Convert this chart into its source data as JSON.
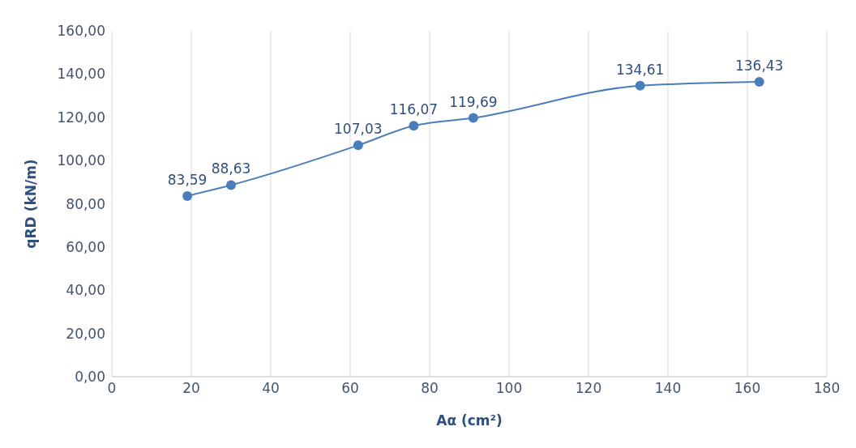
{
  "chart_data": {
    "type": "line",
    "xlabel": "Aα (cm²)",
    "ylabel": "qRD (kN/m)",
    "x": [
      19,
      30,
      62,
      76,
      91,
      133,
      163
    ],
    "series": [
      {
        "color": "#4a7ebb",
        "values": [
          83.59,
          88.63,
          107.03,
          116.07,
          119.69,
          134.61,
          136.43
        ],
        "value_labels": [
          "83,59",
          "88,63",
          "107,03",
          "116,07",
          "119,69",
          "134,61",
          "136,43"
        ]
      }
    ],
    "xlim": [
      0,
      180
    ],
    "xticks": [
      0,
      20,
      40,
      60,
      80,
      100,
      120,
      140,
      160,
      180
    ],
    "ylim": [
      0,
      160
    ],
    "yticks": [
      {
        "value": 0,
        "label": "0,00"
      },
      {
        "value": 20,
        "label": "20,00"
      },
      {
        "value": 40,
        "label": "40,00"
      },
      {
        "value": 60,
        "label": "60,00"
      },
      {
        "value": 80,
        "label": "80,00"
      },
      {
        "value": 100,
        "label": "100,00"
      },
      {
        "value": 120,
        "label": "120,00"
      },
      {
        "value": 140,
        "label": "140,00"
      },
      {
        "value": 160,
        "label": "160,00"
      }
    ],
    "grid": "x",
    "marker": "circle",
    "line_style": "solid",
    "legend": false
  }
}
